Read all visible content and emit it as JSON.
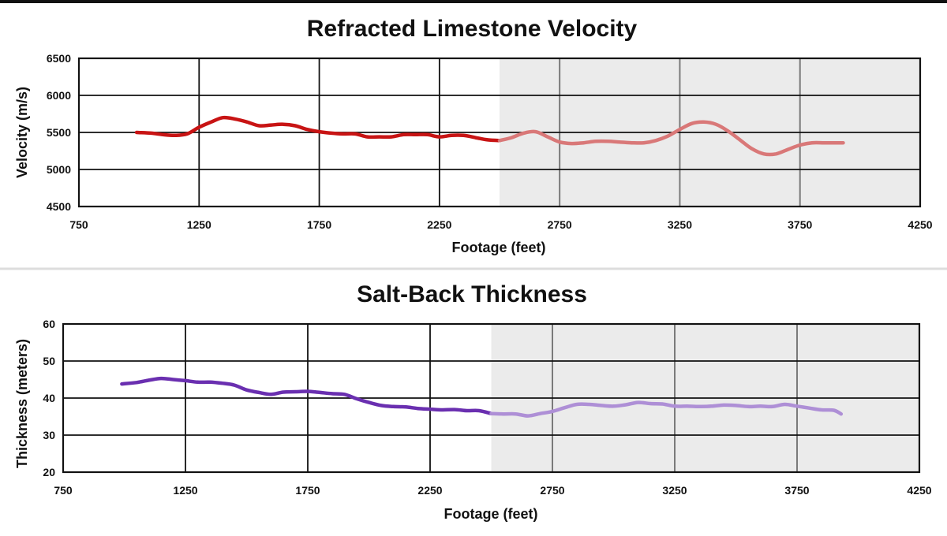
{
  "chart_data": [
    {
      "type": "line",
      "title": "Refracted Limestone Velocity",
      "xlabel": "Footage (feet)",
      "ylabel": "Velocity (m/s)",
      "xlim": [
        750,
        4250
      ],
      "ylim": [
        4500,
        6500
      ],
      "xticks": [
        "750",
        "1250",
        "1750",
        "2250",
        "2750",
        "3250",
        "3750",
        "4250"
      ],
      "yticks": [
        "4500",
        "5000",
        "5500",
        "6000",
        "6500"
      ],
      "grid": true,
      "shaded_region": [
        2500,
        4250
      ],
      "colors": {
        "line": "#c81414",
        "line_shaded": "#d97878",
        "shade": "#ebebeb"
      },
      "series": [
        {
          "x": [
            990,
            1050,
            1100,
            1150,
            1200,
            1250,
            1300,
            1350,
            1400,
            1450,
            1500,
            1550,
            1600,
            1650,
            1700,
            1750,
            1800,
            1850,
            1900,
            1950,
            2000,
            2050,
            2100,
            2150,
            2200,
            2250,
            2300,
            2350,
            2400,
            2450,
            2500,
            2550,
            2600,
            2650,
            2700,
            2750,
            2800,
            2850,
            2900,
            2950,
            3000,
            3050,
            3100,
            3150,
            3200,
            3250,
            3300,
            3350,
            3400,
            3450,
            3500,
            3550,
            3600,
            3650,
            3700,
            3750,
            3800,
            3850,
            3900,
            3930
          ],
          "y": [
            5500,
            5490,
            5470,
            5460,
            5480,
            5570,
            5640,
            5700,
            5680,
            5640,
            5590,
            5600,
            5610,
            5590,
            5540,
            5510,
            5490,
            5480,
            5480,
            5440,
            5440,
            5440,
            5470,
            5470,
            5470,
            5440,
            5460,
            5460,
            5430,
            5400,
            5390,
            5430,
            5490,
            5510,
            5440,
            5370,
            5350,
            5360,
            5380,
            5380,
            5370,
            5360,
            5360,
            5390,
            5450,
            5540,
            5620,
            5640,
            5610,
            5520,
            5400,
            5280,
            5210,
            5210,
            5270,
            5330,
            5360,
            5360,
            5360,
            5360
          ]
        }
      ]
    },
    {
      "type": "line",
      "title": "Salt-Back Thickness",
      "xlabel": "Footage (feet)",
      "ylabel": "Thickness (meters)",
      "xlim": [
        750,
        4250
      ],
      "ylim": [
        20,
        60
      ],
      "xticks": [
        "750",
        "1250",
        "1750",
        "2250",
        "2750",
        "3250",
        "3750",
        "4250"
      ],
      "yticks": [
        "20",
        "30",
        "40",
        "50",
        "60"
      ],
      "grid": true,
      "shaded_region": [
        2500,
        4250
      ],
      "colors": {
        "line": "#6a2fb0",
        "line_shaded": "#ae8fd6",
        "shade": "#ebebeb"
      },
      "series": [
        {
          "x": [
            990,
            1050,
            1100,
            1150,
            1200,
            1250,
            1300,
            1350,
            1400,
            1450,
            1500,
            1550,
            1600,
            1650,
            1700,
            1750,
            1800,
            1850,
            1900,
            1950,
            2000,
            2050,
            2100,
            2150,
            2200,
            2250,
            2300,
            2350,
            2400,
            2450,
            2500,
            2550,
            2600,
            2650,
            2700,
            2750,
            2800,
            2850,
            2900,
            2950,
            3000,
            3050,
            3100,
            3150,
            3200,
            3250,
            3300,
            3350,
            3400,
            3450,
            3500,
            3550,
            3600,
            3650,
            3700,
            3750,
            3800,
            3850,
            3900,
            3930
          ],
          "y": [
            43.8,
            44.2,
            44.8,
            45.3,
            45.0,
            44.7,
            44.3,
            44.3,
            44.0,
            43.5,
            42.2,
            41.5,
            41.0,
            41.6,
            41.7,
            41.8,
            41.5,
            41.2,
            41.0,
            39.8,
            38.8,
            38.0,
            37.7,
            37.6,
            37.2,
            37.0,
            36.8,
            36.9,
            36.6,
            36.6,
            35.8,
            35.7,
            35.7,
            35.2,
            35.8,
            36.4,
            37.4,
            38.3,
            38.3,
            38.0,
            37.8,
            38.2,
            38.8,
            38.5,
            38.4,
            37.8,
            37.8,
            37.7,
            37.8,
            38.1,
            38.0,
            37.7,
            37.8,
            37.7,
            38.3,
            37.8,
            37.3,
            36.8,
            36.7,
            35.7
          ]
        }
      ]
    }
  ]
}
